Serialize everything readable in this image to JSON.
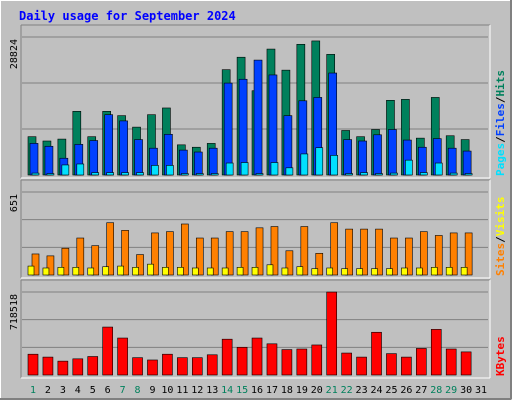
{
  "title": "Daily usage for September 2024",
  "colors": {
    "hits": "#00805C",
    "files": "#0040FF",
    "pages": "#00E0FF",
    "visits": "#FFFF00",
    "sites": "#FF8000",
    "kbytes": "#FF0000",
    "weekend_label": "#00805C",
    "weekday_label": "#000080",
    "title": "#0000FF"
  },
  "chart_data": [
    {
      "type": "bar",
      "title": "Daily usage for September 2024",
      "ymax_label": "28824",
      "ylim": [
        0,
        28824
      ],
      "categories": [
        "1",
        "2",
        "3",
        "4",
        "5",
        "6",
        "7",
        "8",
        "9",
        "10",
        "11",
        "12",
        "13",
        "14",
        "15",
        "16",
        "17",
        "18",
        "19",
        "20",
        "21",
        "22",
        "23",
        "24",
        "25",
        "26",
        "27",
        "28",
        "29",
        "30",
        "31"
      ],
      "legend": [
        {
          "label": "Hits",
          "color_key": "hits"
        },
        {
          "label": "Files",
          "color_key": "files"
        },
        {
          "label": "Pages",
          "color_key": "pages"
        }
      ],
      "series": [
        {
          "name": "Hits",
          "values": [
            8000,
            7100,
            7500,
            13300,
            8000,
            13300,
            12400,
            10000,
            12600,
            14000,
            6300,
            5800,
            6600,
            22000,
            24600,
            17600,
            26300,
            21900,
            27300,
            28000,
            25200,
            9300,
            8000,
            9500,
            15600,
            15800,
            7700,
            16200,
            8200,
            7400,
            0
          ]
        },
        {
          "name": "Files",
          "values": [
            6600,
            6000,
            3500,
            6400,
            7200,
            12600,
            11300,
            7400,
            5600,
            8500,
            5200,
            4800,
            5600,
            19200,
            20000,
            24000,
            20900,
            12400,
            15500,
            16200,
            21300,
            7400,
            7100,
            8400,
            9500,
            7300,
            5800,
            7600,
            5600,
            5000,
            0
          ]
        },
        {
          "name": "Pages",
          "values": [
            400,
            300,
            2100,
            2300,
            500,
            500,
            500,
            500,
            2000,
            2000,
            300,
            300,
            300,
            2500,
            2600,
            300,
            2600,
            1500,
            4400,
            5700,
            4100,
            300,
            500,
            300,
            400,
            3100,
            500,
            2500,
            400,
            300,
            0
          ]
        }
      ]
    },
    {
      "type": "bar",
      "ymax_label": "651",
      "ylim": [
        0,
        651
      ],
      "categories": [
        "1",
        "2",
        "3",
        "4",
        "5",
        "6",
        "7",
        "8",
        "9",
        "10",
        "11",
        "12",
        "13",
        "14",
        "15",
        "16",
        "17",
        "18",
        "19",
        "20",
        "21",
        "22",
        "23",
        "24",
        "25",
        "26",
        "27",
        "28",
        "29",
        "30",
        "31"
      ],
      "legend": [
        {
          "label": "Visits",
          "color_key": "visits"
        },
        {
          "label": "Sites",
          "color_key": "sites"
        }
      ],
      "series": [
        {
          "name": "Visits",
          "values": [
            70,
            55,
            60,
            60,
            55,
            65,
            70,
            60,
            85,
            60,
            60,
            55,
            55,
            55,
            60,
            60,
            80,
            55,
            65,
            50,
            55,
            50,
            50,
            50,
            50,
            55,
            55,
            60,
            60,
            60,
            0
          ]
        },
        {
          "name": "Sites",
          "values": [
            165,
            150,
            210,
            290,
            230,
            410,
            350,
            160,
            330,
            340,
            400,
            290,
            290,
            340,
            340,
            370,
            380,
            190,
            380,
            170,
            410,
            360,
            360,
            360,
            290,
            290,
            340,
            310,
            330,
            330,
            0
          ]
        }
      ]
    },
    {
      "type": "bar",
      "ymax_label": "718518",
      "ylim": [
        0,
        718518
      ],
      "categories": [
        "1",
        "2",
        "3",
        "4",
        "5",
        "6",
        "7",
        "8",
        "9",
        "10",
        "11",
        "12",
        "13",
        "14",
        "15",
        "16",
        "17",
        "18",
        "19",
        "20",
        "21",
        "22",
        "23",
        "24",
        "25",
        "26",
        "27",
        "28",
        "29",
        "30",
        "31"
      ],
      "legend": [
        {
          "label": "KBytes",
          "color_key": "kbytes"
        }
      ],
      "series": [
        {
          "name": "KBytes",
          "values": [
            180000,
            155000,
            120000,
            140000,
            160000,
            415000,
            320000,
            150000,
            130000,
            180000,
            150000,
            150000,
            175000,
            310000,
            240000,
            320000,
            270000,
            220000,
            225000,
            260000,
            718000,
            190000,
            155000,
            370000,
            185000,
            155000,
            230000,
            395000,
            225000,
            200000,
            0
          ]
        }
      ]
    }
  ],
  "weekend_days": [
    1,
    7,
    8,
    14,
    15,
    21,
    22,
    28,
    29
  ]
}
